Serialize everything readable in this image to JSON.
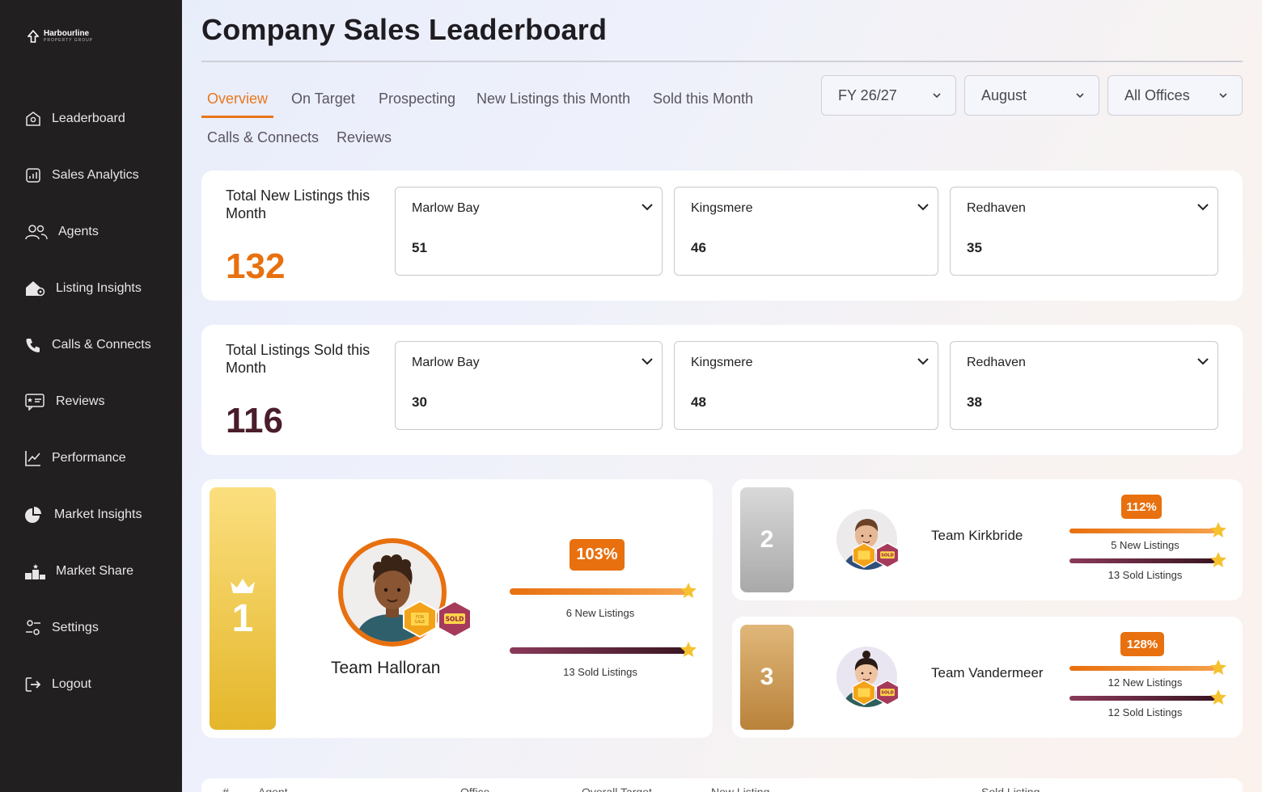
{
  "brand": {
    "name": "Harbourline",
    "sub": "PROPERTY GROUP"
  },
  "nav": [
    {
      "label": "Leaderboard",
      "icon": "home-icon"
    },
    {
      "label": "Sales Analytics",
      "icon": "analytics-icon"
    },
    {
      "label": "Agents",
      "icon": "users-icon"
    },
    {
      "label": "Listing Insights",
      "icon": "house-gear-icon"
    },
    {
      "label": "Calls & Connects",
      "icon": "phone-icon"
    },
    {
      "label": "Reviews",
      "icon": "review-icon"
    },
    {
      "label": "Performance",
      "icon": "line-chart-icon"
    },
    {
      "label": "Market Insights",
      "icon": "pie-chart-icon"
    },
    {
      "label": "Market Share",
      "icon": "podium-icon"
    },
    {
      "label": "Settings",
      "icon": "sliders-icon"
    },
    {
      "label": "Logout",
      "icon": "logout-icon"
    }
  ],
  "page": {
    "title": "Company Sales Leaderboard"
  },
  "tabs": [
    "Overview",
    "On Target",
    "Prospecting",
    "New Listings this Month",
    "Sold this Month",
    "Calls & Connects",
    "Reviews"
  ],
  "active_tab": "Overview",
  "filters": {
    "year": "FY 26/27",
    "month": "August",
    "office": "All Offices"
  },
  "new_listings": {
    "label": "Total New Listings this Month",
    "total": "132",
    "color": "#e8700f",
    "offices": [
      {
        "name": "Marlow Bay",
        "value": "51"
      },
      {
        "name": "Kingsmere",
        "value": "46"
      },
      {
        "name": "Redhaven",
        "value": "35"
      }
    ]
  },
  "sold_listings": {
    "label": "Total Listings Sold this Month",
    "total": "116",
    "color": "#4a1d2a",
    "offices": [
      {
        "name": "Marlow Bay",
        "value": "30"
      },
      {
        "name": "Kingsmere",
        "value": "48"
      },
      {
        "name": "Redhaven",
        "value": "38"
      }
    ]
  },
  "leaders": {
    "first": {
      "rank": "1",
      "team": "Team Halloran",
      "pct": "103%",
      "new": "6 New Listings",
      "sold": "13 Sold Listings",
      "for_sale_badge": "FOR SALE",
      "sold_badge": "SOLD"
    },
    "second": {
      "rank": "2",
      "team": "Team Kirkbride",
      "pct": "112%",
      "new": "5 New Listings",
      "sold": "13 Sold Listings",
      "for_sale_badge": "FOR SALE",
      "sold_badge": "SOLD"
    },
    "third": {
      "rank": "3",
      "team": "Team Vandermeer",
      "pct": "128%",
      "new": "12 New Listings",
      "sold": "12 Sold Listings",
      "for_sale_badge": "FOR SALE",
      "sold_badge": "SOLD"
    }
  },
  "table": {
    "headers": [
      "#",
      "Agent",
      "Office",
      "Overall Target",
      "New Listing",
      "Sold Listing"
    ]
  },
  "colors": {
    "accent": "#e8771a",
    "sidebar": "#221f20",
    "sold_bar": "#7a2f4a",
    "gold": "#f1c232",
    "silver": "#b9b9b9",
    "bronze": "#c58b3e"
  }
}
